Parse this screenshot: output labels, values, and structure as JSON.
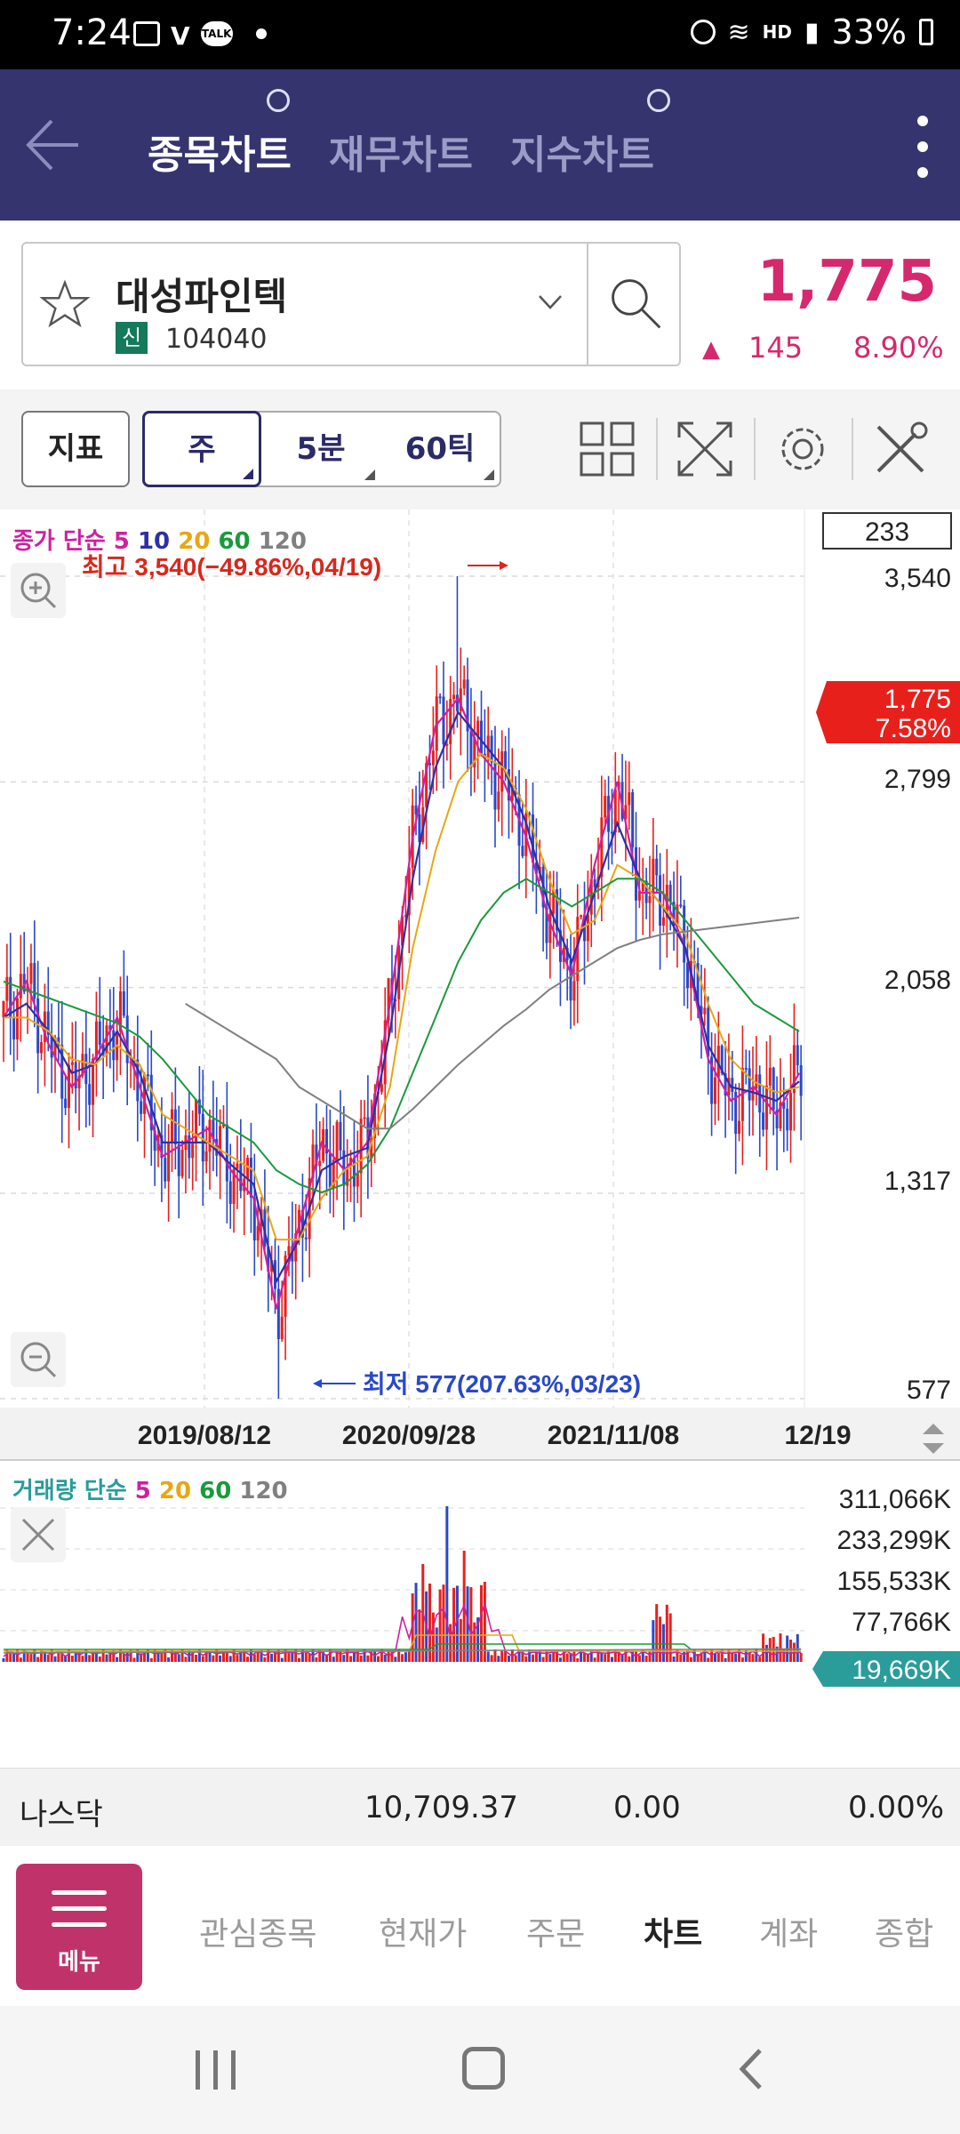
{
  "status_bar": {
    "time": "7:24",
    "battery": "33%",
    "network": "HD"
  },
  "header": {
    "tabs": [
      {
        "label": "종목차트",
        "active": true
      },
      {
        "label": "재무차트",
        "active": false
      },
      {
        "label": "지수차트",
        "active": false
      }
    ]
  },
  "stock": {
    "name": "대성파인텍",
    "badge": "신",
    "code": "104040",
    "price": "1,775",
    "change": "145",
    "change_pct": "8.90%"
  },
  "toolbar": {
    "indicator_label": "지표",
    "periods": [
      "주",
      "5분",
      "60틱"
    ],
    "selected_period": "주"
  },
  "price_chart": {
    "legend_prefix": "종가 단순",
    "ma_periods": [
      "5",
      "10",
      "20",
      "60",
      "120"
    ],
    "count_box": "233",
    "y_labels": [
      "3,540",
      "2,799",
      "2,058",
      "1,317",
      "577"
    ],
    "high_annotation": "최고 3,540(−49.86%,04/19)",
    "low_annotation": "최저 577(207.63%,03/23)",
    "current_price": "1,775",
    "current_pct": "7.58%",
    "x_labels": [
      "2019/08/12",
      "2020/09/28",
      "2021/11/08",
      "12/19"
    ]
  },
  "volume_chart": {
    "legend_prefix": "거래량 단순",
    "ma_periods": [
      "5",
      "20",
      "60",
      "120"
    ],
    "y_labels": [
      "311,066K",
      "233,299K",
      "155,533K",
      "77,766K"
    ],
    "current_volume": "19,669K"
  },
  "index_bar": {
    "name": "나스닥",
    "value": "10,709.37",
    "change": "0.00",
    "change_pct": "0.00%"
  },
  "bottom_nav": {
    "menu_label": "메뉴",
    "items": [
      "관심종목",
      "현재가",
      "주문",
      "차트",
      "계좌",
      "종합"
    ],
    "active": "차트"
  },
  "colors": {
    "header_bg": "#35346f",
    "accent_pink": "#d6286d",
    "up_red": "#e8201c",
    "down_blue": "#2a49c8",
    "ma5": "#d01fa0",
    "ma10": "#2d2fa8",
    "ma20": "#e8a712",
    "ma60": "#1a9a3c",
    "ma120": "#808080"
  },
  "chart_data": [
    {
      "type": "candlestick",
      "title": "종가 단순",
      "y_axis_ticks": [
        3540,
        2799,
        2058,
        1317,
        577
      ],
      "ylim": [
        577,
        3540
      ],
      "x_axis_ticks": [
        "2019/08/12",
        "2020/09/28",
        "2021/11/08",
        "12/19"
      ],
      "annotations": {
        "high": {
          "value": 3540,
          "label": "최고 3,540(−49.86%,04/19)"
        },
        "low": {
          "value": 577,
          "label": "최저 577(207.63%,03/23)"
        },
        "current": {
          "value": 1775,
          "label": "7.58%"
        }
      },
      "series": [
        {
          "name": "5",
          "values": [
            1950,
            2080,
            1850,
            1700,
            1800,
            1950,
            1700,
            1450,
            1500,
            1550,
            1400,
            1300,
            900,
            1200,
            1500,
            1400,
            1500,
            2000,
            2600,
            3000,
            3100,
            2900,
            2800,
            2600,
            2300,
            2100,
            2500,
            2800,
            2400,
            2400,
            2200,
            1800,
            1650,
            1700,
            1600,
            1750
          ]
        },
        {
          "name": "10",
          "values": [
            1950,
            2000,
            1900,
            1750,
            1780,
            1900,
            1750,
            1500,
            1500,
            1500,
            1420,
            1350,
            1000,
            1150,
            1400,
            1450,
            1480,
            1900,
            2450,
            2850,
            3050,
            2950,
            2850,
            2650,
            2350,
            2150,
            2400,
            2650,
            2450,
            2350,
            2200,
            1850,
            1700,
            1680,
            1650,
            1720
          ]
        },
        {
          "name": "20",
          "values": [
            1950,
            1950,
            1900,
            1800,
            1780,
            1850,
            1780,
            1600,
            1550,
            1500,
            1450,
            1400,
            1150,
            1150,
            1300,
            1400,
            1450,
            1700,
            2200,
            2550,
            2800,
            2900,
            2850,
            2700,
            2450,
            2250,
            2300,
            2500,
            2450,
            2350,
            2250,
            2000,
            1800,
            1720,
            1680,
            1700
          ]
        },
        {
          "name": "60",
          "values": [
            2080,
            2050,
            2020,
            1990,
            1960,
            1930,
            1880,
            1800,
            1700,
            1600,
            1550,
            1500,
            1400,
            1350,
            1320,
            1350,
            1420,
            1550,
            1750,
            1950,
            2150,
            2300,
            2400,
            2450,
            2400,
            2350,
            2400,
            2450,
            2450,
            2400,
            2300,
            2200,
            2100,
            2000,
            1950,
            1900
          ]
        },
        {
          "name": "120",
          "values": [
            null,
            null,
            null,
            null,
            null,
            null,
            null,
            null,
            2000,
            1950,
            1900,
            1850,
            1800,
            1700,
            1650,
            1600,
            1550,
            1550,
            1620,
            1700,
            1780,
            1850,
            1920,
            1980,
            2050,
            2100,
            2150,
            2200,
            2230,
            2250,
            2260,
            2270,
            2280,
            2290,
            2300,
            2310
          ]
        }
      ]
    },
    {
      "type": "bar",
      "title": "거래량 단순",
      "y_axis_ticks": [
        311066,
        233299,
        155533,
        77766
      ],
      "units": "K",
      "current": 19669
    }
  ]
}
